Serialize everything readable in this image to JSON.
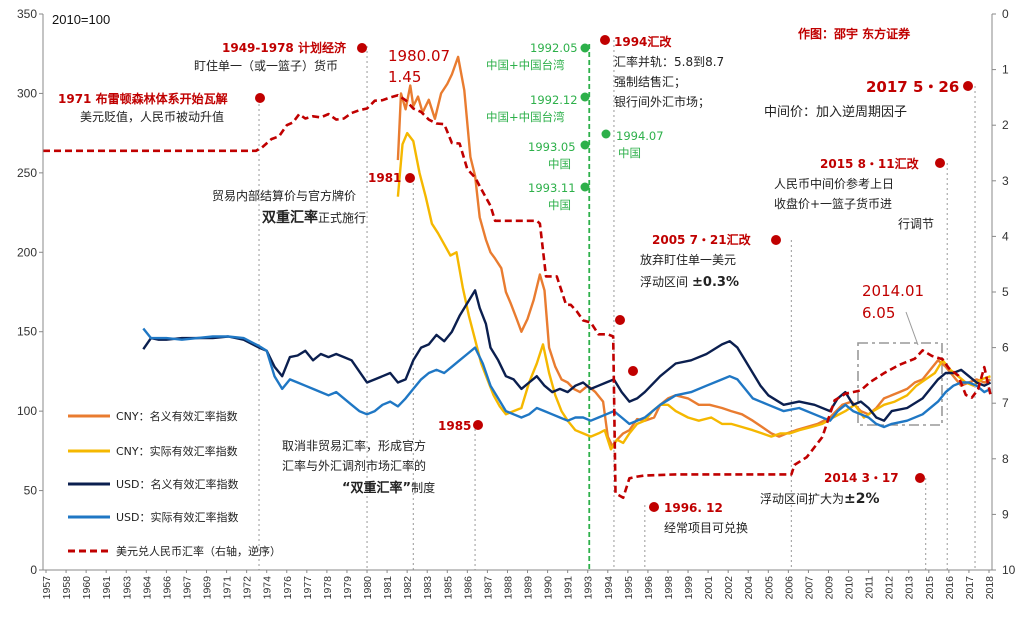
{
  "chart_data": {
    "type": "line",
    "title": "",
    "unit_label": "2010=100",
    "credit": "作图：邵宇 东方证券",
    "x_tick_labels": [
      "1957",
      "1958",
      "1960",
      "1961",
      "1963",
      "1964",
      "1966",
      "1967",
      "1969",
      "1971",
      "1972",
      "1974",
      "1976",
      "1977",
      "1978",
      "1979",
      "1980",
      "1981",
      "1982",
      "1983",
      "1985",
      "1986",
      "1987",
      "1988",
      "1989",
      "1990",
      "1991",
      "1993",
      "1994",
      "1995",
      "1996",
      "1998",
      "1999",
      "2001",
      "2002",
      "2004",
      "2005",
      "2006",
      "2007",
      "2009",
      "2010",
      "2011",
      "2012",
      "2013",
      "2015",
      "2016",
      "2017",
      "2018"
    ],
    "x_range": [
      1957,
      2018.5
    ],
    "y_left": {
      "range": [
        0,
        350
      ],
      "ticks": [
        0,
        50,
        100,
        150,
        200,
        250,
        300,
        350
      ]
    },
    "y_right": {
      "range": [
        0,
        10
      ],
      "inverted": true,
      "ticks": [
        0,
        1,
        2,
        3,
        4,
        5,
        6,
        7,
        8,
        9,
        10
      ]
    },
    "series": [
      {
        "name": "CNY：名义有效汇率指数",
        "color": "#e97c30",
        "axis": "left",
        "x": [
          1980.0,
          1980.2,
          1980.5,
          1980.8,
          1981.0,
          1981.3,
          1981.6,
          1982.0,
          1982.4,
          1982.8,
          1983.2,
          1983.5,
          1983.9,
          1984.3,
          1984.7,
          1985.0,
          1985.3,
          1985.7,
          1986.0,
          1986.3,
          1986.7,
          1987.0,
          1987.3,
          1987.7,
          1988.0,
          1988.4,
          1988.8,
          1989.2,
          1989.5,
          1989.8,
          1990.2,
          1990.6,
          1991.0,
          1991.4,
          1991.8,
          1992.3,
          1992.8,
          1993.3,
          1993.6,
          1993.9,
          1994.2,
          1994.6,
          1995.0,
          1995.5,
          1996.0,
          1996.6,
          1997.0,
          1997.5,
          1998.0,
          1998.8,
          1999.5,
          2000.2,
          2001.0,
          2001.6,
          2002.3,
          2003.0,
          2003.6,
          2004.2,
          2004.7,
          2005.2,
          2005.8,
          2006.5,
          2007.2,
          2008.0,
          2008.8,
          2009.4,
          2010.0,
          2010.5,
          2011.0,
          2011.5,
          2012.0,
          2012.5,
          2013.0,
          2013.5,
          2014.0,
          2014.5,
          2015.0,
          2015.5,
          2016.0,
          2016.5,
          2017.0,
          2017.5,
          2018.0,
          2018.4
        ],
        "y": [
          258,
          300,
          290,
          305,
          292,
          298,
          288,
          296,
          284,
          300,
          306,
          312,
          323,
          302,
          260,
          248,
          222,
          208,
          200,
          196,
          190,
          175,
          168,
          158,
          150,
          158,
          170,
          186,
          176,
          140,
          128,
          120,
          118,
          114,
          112,
          116,
          112,
          106,
          84,
          78,
          82,
          86,
          88,
          95,
          94,
          96,
          104,
          108,
          110,
          108,
          104,
          104,
          102,
          100,
          98,
          94,
          90,
          86,
          84,
          86,
          88,
          90,
          92,
          96,
          104,
          106,
          100,
          98,
          102,
          108,
          110,
          112,
          114,
          118,
          120,
          126,
          132,
          128,
          122,
          116,
          118,
          120,
          118,
          120
        ]
      },
      {
        "name": "CNY：实际有效汇率指数",
        "color": "#f5b800",
        "axis": "left",
        "x": [
          1980.0,
          1980.3,
          1980.6,
          1981.0,
          1981.4,
          1981.8,
          1982.2,
          1982.6,
          1983.0,
          1983.4,
          1983.8,
          1984.2,
          1984.6,
          1985.0,
          1985.4,
          1985.8,
          1986.2,
          1986.6,
          1987.0,
          1987.5,
          1988.0,
          1988.5,
          1989.0,
          1989.4,
          1989.8,
          1990.2,
          1990.6,
          1991.0,
          1991.5,
          1992.0,
          1992.5,
          1993.0,
          1993.4,
          1993.8,
          1994.2,
          1994.6,
          1995.0,
          1995.5,
          1996.0,
          1996.5,
          1997.0,
          1997.5,
          1998.0,
          1998.8,
          1999.5,
          2000.3,
          2001.0,
          2001.6,
          2002.3,
          2003.0,
          2003.6,
          2004.2,
          2004.8,
          2005.4,
          2006.0,
          2006.8,
          2007.5,
          2008.2,
          2009.0,
          2009.6,
          2010.2,
          2010.8,
          2011.5,
          2012.2,
          2013.0,
          2013.6,
          2014.2,
          2014.8,
          2015.3,
          2015.8,
          2016.3,
          2016.8,
          2017.3,
          2017.8,
          2018.4
        ],
        "y": [
          235,
          268,
          275,
          270,
          250,
          235,
          218,
          212,
          205,
          198,
          200,
          178,
          160,
          145,
          130,
          120,
          110,
          103,
          98,
          100,
          102,
          118,
          130,
          142,
          124,
          110,
          100,
          94,
          88,
          86,
          84,
          86,
          88,
          76,
          82,
          80,
          86,
          92,
          94,
          100,
          104,
          104,
          100,
          96,
          94,
          96,
          92,
          92,
          90,
          88,
          86,
          84,
          86,
          86,
          88,
          90,
          92,
          96,
          100,
          104,
          96,
          100,
          104,
          106,
          110,
          116,
          120,
          124,
          132,
          126,
          122,
          118,
          116,
          120,
          122
        ]
      },
      {
        "name": "USD：名义有效汇率指数",
        "color": "#0b1f4f",
        "axis": "left",
        "x": [
          1963.5,
          1964.0,
          1964.5,
          1965.0,
          1966.0,
          1967.0,
          1968.0,
          1969.0,
          1970.0,
          1971.0,
          1971.5,
          1972.0,
          1972.5,
          1973.0,
          1973.5,
          1974.0,
          1974.5,
          1975.0,
          1975.5,
          1976.0,
          1976.5,
          1977.0,
          1977.5,
          1978.0,
          1978.5,
          1979.0,
          1979.5,
          1980.0,
          1980.5,
          1981.0,
          1981.5,
          1982.0,
          1982.5,
          1983.0,
          1983.5,
          1984.0,
          1984.5,
          1985.0,
          1985.3,
          1985.7,
          1986.0,
          1986.5,
          1987.0,
          1987.5,
          1988.0,
          1988.5,
          1989.0,
          1989.5,
          1990.0,
          1990.5,
          1991.0,
          1991.5,
          1992.0,
          1992.5,
          1993.0,
          1993.5,
          1994.0,
          1994.5,
          1995.0,
          1995.5,
          1996.0,
          1997.0,
          1998.0,
          1999.0,
          2000.0,
          2001.0,
          2001.5,
          2002.0,
          2002.5,
          2003.0,
          2003.5,
          2004.0,
          2005.0,
          2006.0,
          2007.0,
          2008.0,
          2008.5,
          2009.0,
          2009.5,
          2010.0,
          2010.5,
          2011.0,
          2011.5,
          2012.0,
          2013.0,
          2014.0,
          2014.5,
          2015.0,
          2015.5,
          2016.0,
          2016.5,
          2017.0,
          2017.5,
          2018.0,
          2018.4
        ],
        "y": [
          139,
          146,
          145,
          145,
          146,
          146,
          146,
          147,
          145,
          140,
          138,
          128,
          122,
          134,
          135,
          138,
          132,
          136,
          134,
          136,
          134,
          132,
          125,
          118,
          120,
          122,
          124,
          118,
          120,
          132,
          140,
          142,
          148,
          144,
          150,
          160,
          168,
          176,
          165,
          155,
          140,
          132,
          122,
          120,
          114,
          118,
          122,
          116,
          112,
          114,
          112,
          116,
          118,
          114,
          116,
          118,
          120,
          112,
          106,
          108,
          112,
          122,
          130,
          132,
          136,
          142,
          144,
          140,
          132,
          124,
          116,
          110,
          104,
          106,
          104,
          100,
          108,
          112,
          104,
          106,
          102,
          96,
          94,
          100,
          102,
          108,
          114,
          120,
          124,
          124,
          126,
          122,
          118,
          116,
          118
        ]
      },
      {
        "name": "USD：实际有效汇率指数",
        "color": "#1f77c4",
        "axis": "left",
        "x": [
          1963.5,
          1964.0,
          1965.0,
          1966.0,
          1967.0,
          1968.0,
          1969.0,
          1970.0,
          1971.0,
          1971.5,
          1972.0,
          1972.5,
          1973.0,
          1973.5,
          1974.0,
          1974.5,
          1975.0,
          1975.5,
          1976.0,
          1976.5,
          1977.0,
          1977.5,
          1978.0,
          1978.5,
          1979.0,
          1979.5,
          1980.0,
          1980.5,
          1981.0,
          1981.5,
          1982.0,
          1982.5,
          1983.0,
          1983.5,
          1984.0,
          1984.5,
          1985.0,
          1985.5,
          1986.0,
          1986.5,
          1987.0,
          1987.5,
          1988.0,
          1988.5,
          1989.0,
          1989.5,
          1990.0,
          1990.5,
          1991.0,
          1991.5,
          1992.0,
          1992.5,
          1993.0,
          1993.5,
          1994.0,
          1994.5,
          1995.0,
          1996.0,
          1997.0,
          1998.0,
          1999.0,
          2000.0,
          2001.0,
          2001.5,
          2002.0,
          2002.5,
          2003.0,
          2004.0,
          2005.0,
          2006.0,
          2007.0,
          2008.0,
          2008.5,
          2009.0,
          2009.5,
          2010.0,
          2010.5,
          2011.0,
          2011.5,
          2012.0,
          2013.0,
          2014.0,
          2015.0,
          2015.5,
          2016.0,
          2016.5,
          2017.0,
          2017.5,
          2018.0,
          2018.4
        ],
        "y": [
          152,
          146,
          146,
          145,
          146,
          147,
          147,
          146,
          141,
          138,
          122,
          114,
          120,
          118,
          116,
          114,
          112,
          110,
          112,
          108,
          104,
          100,
          98,
          100,
          104,
          106,
          103,
          108,
          114,
          120,
          124,
          126,
          124,
          128,
          132,
          136,
          140,
          130,
          116,
          108,
          100,
          98,
          96,
          98,
          102,
          100,
          98,
          96,
          94,
          96,
          96,
          94,
          96,
          98,
          100,
          96,
          92,
          96,
          104,
          110,
          112,
          116,
          120,
          122,
          120,
          114,
          108,
          104,
          100,
          102,
          98,
          94,
          100,
          104,
          100,
          98,
          96,
          92,
          90,
          92,
          94,
          98,
          106,
          112,
          116,
          118,
          118,
          116,
          112,
          114
        ]
      },
      {
        "name": "美元兑人民币汇率（右轴，逆序）",
        "color": "#c00000",
        "axis": "right",
        "dashed": true,
        "x": [
          1957.0,
          1970.8,
          1971.2,
          1971.8,
          1972.3,
          1972.8,
          1973.2,
          1973.6,
          1974.0,
          1974.5,
          1975.0,
          1975.5,
          1976.0,
          1976.5,
          1977.0,
          1977.5,
          1978.0,
          1978.5,
          1979.0,
          1979.5,
          1980.0,
          1980.5,
          1981.0,
          1981.5,
          1982.0,
          1982.5,
          1983.0,
          1983.5,
          1984.0,
          1984.5,
          1985.0,
          1985.5,
          1986.0,
          1986.3,
          1986.8,
          1987.0,
          1987.5,
          1988.0,
          1988.5,
          1989.0,
          1989.2,
          1989.6,
          1989.95,
          1990.3,
          1990.9,
          1991.2,
          1991.6,
          1992.0,
          1992.5,
          1993.0,
          1993.6,
          1993.95,
          1994.1,
          1994.6,
          1995.0,
          1995.5,
          1996.0,
          1998.0,
          2000.0,
          2002.0,
          2004.0,
          2005.5,
          2005.7,
          2006.5,
          2007.5,
          2008.3,
          2009.0,
          2010.0,
          2010.6,
          2011.5,
          2012.5,
          2013.5,
          2014.0,
          2014.6,
          2015.3,
          2015.7,
          2016.3,
          2016.8,
          2017.2,
          2017.6,
          2018.0,
          2018.4
        ],
        "y": [
          2.46,
          2.46,
          2.4,
          2.25,
          2.2,
          2.0,
          1.95,
          1.8,
          1.88,
          1.84,
          1.86,
          1.8,
          1.9,
          1.88,
          1.78,
          1.73,
          1.7,
          1.56,
          1.55,
          1.5,
          1.46,
          1.55,
          1.7,
          1.76,
          1.9,
          1.97,
          1.98,
          2.32,
          2.33,
          2.79,
          2.94,
          3.2,
          3.45,
          3.72,
          3.72,
          3.72,
          3.72,
          3.72,
          3.72,
          3.72,
          3.77,
          4.72,
          4.72,
          4.72,
          5.23,
          5.23,
          5.35,
          5.51,
          5.55,
          5.76,
          5.76,
          5.8,
          8.62,
          8.7,
          8.35,
          8.32,
          8.3,
          8.28,
          8.28,
          8.28,
          8.28,
          8.28,
          8.11,
          7.97,
          7.61,
          6.95,
          6.83,
          6.77,
          6.62,
          6.46,
          6.31,
          6.2,
          6.05,
          6.15,
          6.21,
          6.37,
          6.5,
          6.85,
          6.9,
          6.75,
          6.35,
          6.85
        ]
      }
    ],
    "annotations": {
      "a1949": "1949-1978 计划经济",
      "a1949b": "盯住单一（或一篮子）货币",
      "a1971": "1971 布雷顿森林体系开始瓦解",
      "a1971b": "美元贬值，人民币被动升值",
      "a1980": "1980.07",
      "a1980b": "1.45",
      "a1981": "1981",
      "a1981b": "贸易内部结算价与官方牌价",
      "a1981c_bold": "双重汇率",
      "a1981c_tail": "正式施行",
      "a1985": "1985",
      "a1985b": "取消非贸易汇率，形成官方",
      "a1985c": "汇率与外汇调剂市场汇率的",
      "a1985d_bold": "“双重汇率”",
      "a1985d_tail": "制度",
      "g199205": "1992.05",
      "g199205b": "中国+中国台湾",
      "g199212": "1992.12",
      "g199212b": "中国+中国台湾",
      "g199305": "1993.05",
      "g199305b": "中国",
      "g199311": "1993.11",
      "g199311b": "中国",
      "g199407": "1994.07",
      "g199407b": "中国",
      "a1994": "1994汇改",
      "a1994b": "汇率并轨：5.8到8.7",
      "a1994c": "强制结售汇；",
      "a1994d": "银行间外汇市场；",
      "a1996": "1996. 12",
      "a1996b": "经常项目可兑换",
      "a2005": "2005 7・21汇改",
      "a2005b": "放弃盯住单一美元",
      "a2005c": "浮动区间",
      "a2005c_bold": "±0.3%",
      "a2014pt": "2014.01",
      "a2014ptb": "6.05",
      "a2014": "2014 3・17",
      "a2014b": "浮动区间扩大为",
      "a2014b_bold": "±2%",
      "a2015": "2015 8・11汇改",
      "a2015b": "人民币中间价参考上日",
      "a2015c": "收盘价+一篮子货币进",
      "a2015d": "行调节",
      "a2017": "2017 5・26",
      "a2017b": "中间价：加入逆周期因子"
    },
    "legend_placement": "bottom-left",
    "grid": false
  }
}
